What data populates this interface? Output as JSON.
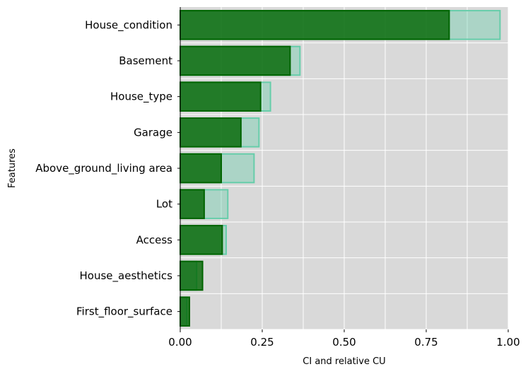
{
  "chart_data": {
    "type": "bar",
    "orientation": "horizontal",
    "categories": [
      "House_condition",
      "Basement",
      "House_type",
      "Garage",
      "Above_ground_living area",
      "Lot",
      "Access",
      "House_aesthetics",
      "First_floor_surface"
    ],
    "series": [
      {
        "values": [
          0.975,
          0.365,
          0.275,
          0.24,
          0.225,
          0.145,
          0.14,
          0.05,
          0.02
        ],
        "color": "#66cdaa",
        "fill_opacity": 0.4
      },
      {
        "values": [
          0.82,
          0.335,
          0.245,
          0.185,
          0.125,
          0.073,
          0.128,
          0.068,
          0.028
        ],
        "color": "#006400",
        "fill_opacity": 0.8
      }
    ],
    "xlabel": "CI and relative CU",
    "ylabel": "Features",
    "xlim": [
      0,
      1
    ],
    "xticks": [
      "0.00",
      "0.25",
      "0.50",
      "0.75",
      "1.00"
    ],
    "grid": true,
    "background": "#d9d9d9"
  }
}
